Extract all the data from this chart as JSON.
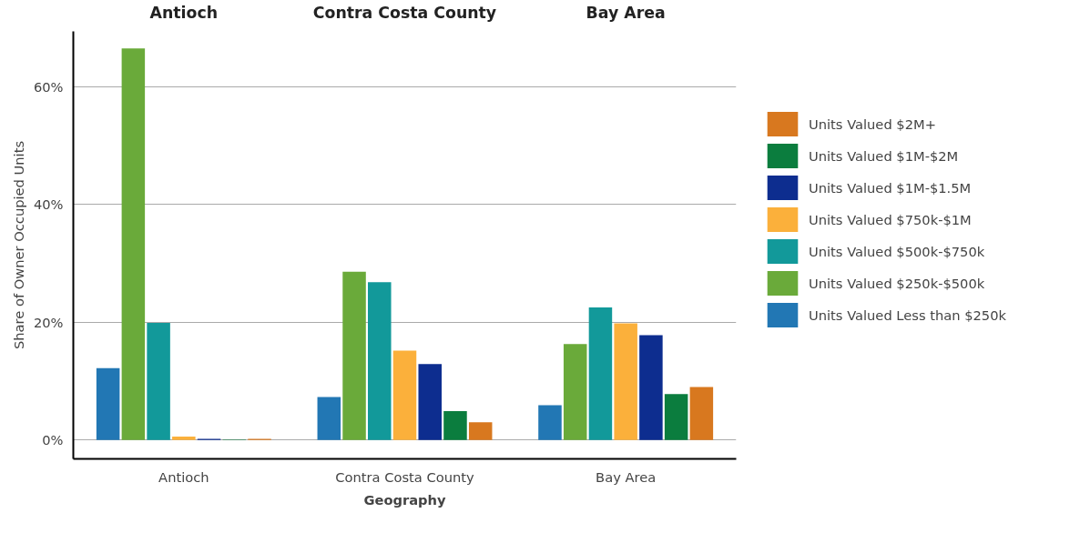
{
  "chart_data": {
    "type": "bar",
    "xlabel": "Geography",
    "ylabel": "Share of Owner Occupied Units",
    "categories": [
      "Antioch",
      "Contra Costa County",
      "Bay Area"
    ],
    "annotations": [
      "Antioch",
      "Contra Costa County",
      "Bay Area"
    ],
    "ylim": [
      -3.2,
      69.4
    ],
    "yticks": [
      {
        "value": 0,
        "label": "0%"
      },
      {
        "value": 20,
        "label": "20%"
      },
      {
        "value": 40,
        "label": "40%"
      },
      {
        "value": 60,
        "label": "60%"
      }
    ],
    "grid": "y",
    "legend": "right",
    "series": [
      {
        "name": "Units Valued Less than $250k",
        "color": "#2277b4",
        "values": [
          12.2,
          7.3,
          5.9
        ]
      },
      {
        "name": "Units Valued $250k-$500k",
        "color": "#6aaa3a",
        "values": [
          66.5,
          28.6,
          16.3
        ]
      },
      {
        "name": "Units Valued $500k-$750k",
        "color": "#12999a",
        "values": [
          19.9,
          26.8,
          22.5
        ]
      },
      {
        "name": "Units Valued $750k-$1M",
        "color": "#fbb03b",
        "values": [
          0.6,
          15.2,
          19.8
        ]
      },
      {
        "name": "Units Valued $1M-$1.5M",
        "color": "#0d2d8f",
        "values": [
          0.2,
          12.9,
          17.8
        ]
      },
      {
        "name": "Units Valued $1M-$2M",
        "color": "#0b7d3e",
        "values": [
          0.1,
          4.9,
          7.8
        ]
      },
      {
        "name": "Units Valued $2M+",
        "color": "#d8781f",
        "values": [
          0.2,
          3.0,
          9.0
        ]
      }
    ]
  }
}
